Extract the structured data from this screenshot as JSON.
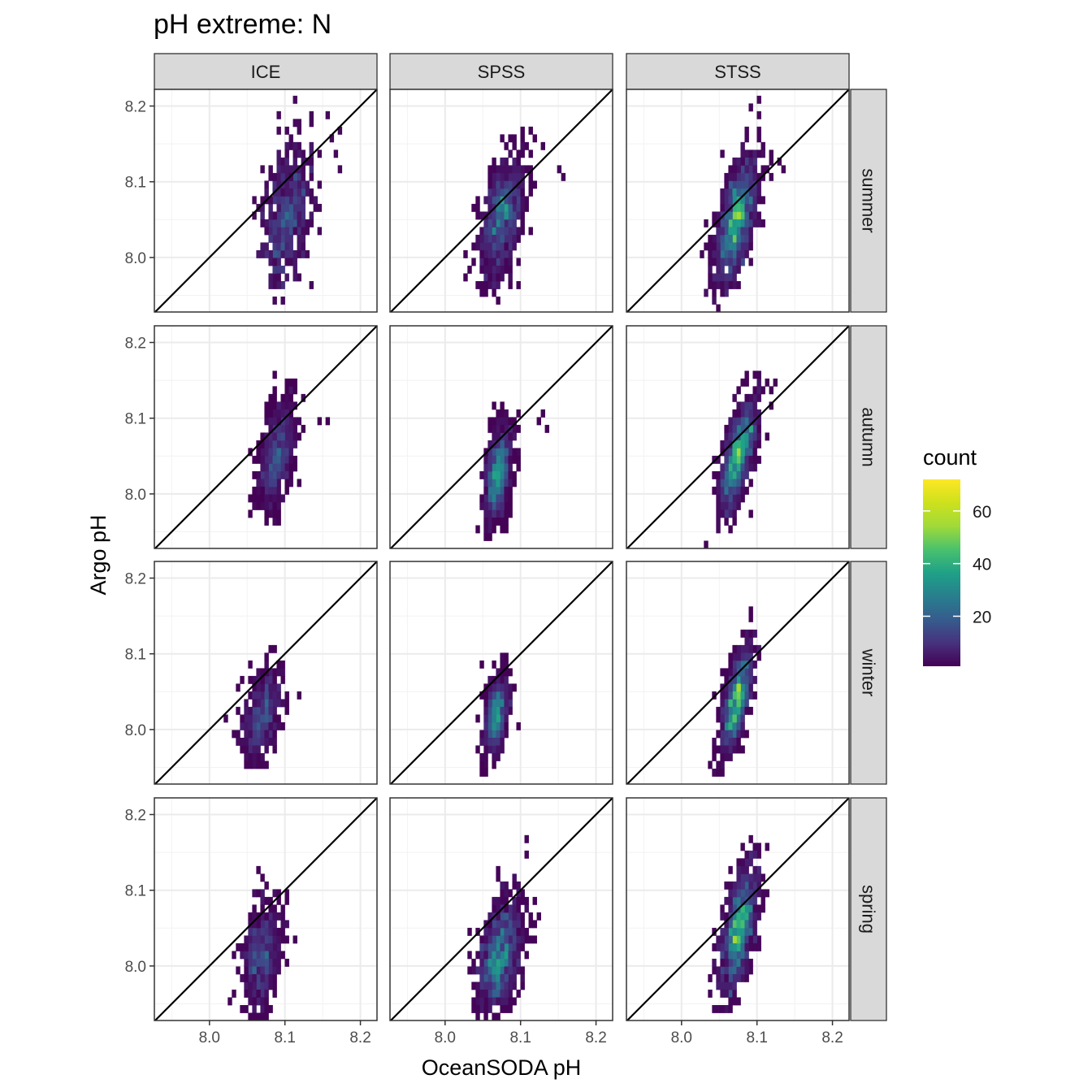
{
  "chart_data": {
    "type": "heatmap",
    "title": "pH extreme: N",
    "xlabel": "OceanSODA pH",
    "ylabel": "Argo pH",
    "xlim": [
      7.927,
      8.222
    ],
    "ylim": [
      7.928,
      8.222
    ],
    "x_ticks": [
      8.0,
      8.1,
      8.2
    ],
    "y_ticks": [
      8.0,
      8.1,
      8.2
    ],
    "x_tick_labels": [
      "8.0",
      "8.1",
      "8.2"
    ],
    "y_tick_labels": [
      "8.0",
      "8.1",
      "8.2"
    ],
    "facet_columns": [
      "ICE",
      "SPSS",
      "STSS"
    ],
    "facet_rows": [
      "summer",
      "autumn",
      "winter",
      "spring"
    ],
    "reference_line": "y = x",
    "grid": true,
    "legend": {
      "title": "count",
      "position": "right",
      "colormap": "viridis",
      "range": [
        1,
        72
      ],
      "ticks": [
        20,
        40,
        60
      ],
      "tick_labels": [
        "20",
        "40",
        "60"
      ]
    },
    "panels": [
      {
        "column": "ICE",
        "row": "summer",
        "x_center": 8.103,
        "y_center": 8.055,
        "x_spread": 0.016,
        "y_spread": 0.045,
        "corr": 0.35,
        "n": 520,
        "outliers": [
          [
            8.115,
            8.205
          ],
          [
            8.135,
            8.185
          ],
          [
            8.155,
            8.185
          ],
          [
            8.16,
            8.155
          ],
          [
            8.165,
            8.14
          ],
          [
            8.17,
            8.17
          ],
          [
            8.175,
            8.115
          ],
          [
            8.145,
            8.1
          ]
        ]
      },
      {
        "column": "SPSS",
        "row": "summer",
        "x_center": 8.075,
        "y_center": 8.05,
        "x_spread": 0.014,
        "y_spread": 0.04,
        "corr": 0.45,
        "n": 780,
        "outliers": [
          [
            8.115,
            8.165
          ],
          [
            8.1,
            8.14
          ],
          [
            8.15,
            8.12
          ],
          [
            8.155,
            8.105
          ],
          [
            8.13,
            8.145
          ],
          [
            8.06,
            7.97
          ],
          [
            8.075,
            7.975
          ],
          [
            8.085,
            7.96
          ],
          [
            8.095,
            7.962
          ]
        ]
      },
      {
        "column": "STSS",
        "row": "summer",
        "x_center": 8.072,
        "y_center": 8.048,
        "x_spread": 0.014,
        "y_spread": 0.04,
        "corr": 0.6,
        "n": 1100,
        "outliers": [
          [
            8.09,
            8.195
          ],
          [
            8.1,
            8.165
          ],
          [
            8.11,
            8.15
          ],
          [
            8.12,
            8.14
          ],
          [
            8.13,
            8.13
          ],
          [
            8.135,
            8.115
          ],
          [
            8.105,
            8.185
          ],
          [
            8.05,
            7.985
          ]
        ]
      },
      {
        "column": "ICE",
        "row": "autumn",
        "x_center": 8.088,
        "y_center": 8.05,
        "x_spread": 0.012,
        "y_spread": 0.035,
        "corr": 0.45,
        "n": 640,
        "outliers": [
          [
            8.085,
            8.155
          ],
          [
            8.115,
            8.145
          ],
          [
            8.125,
            8.13
          ],
          [
            8.145,
            8.095
          ],
          [
            8.155,
            8.1
          ],
          [
            8.12,
            8.1
          ]
        ]
      },
      {
        "column": "SPSS",
        "row": "autumn",
        "x_center": 8.07,
        "y_center": 8.025,
        "x_spread": 0.009,
        "y_spread": 0.03,
        "corr": 0.4,
        "n": 900,
        "outliers": [
          [
            8.125,
            8.1
          ],
          [
            8.13,
            8.11
          ],
          [
            8.135,
            8.085
          ],
          [
            8.075,
            7.965
          ],
          [
            8.065,
            7.955
          ],
          [
            8.08,
            7.99
          ]
        ]
      },
      {
        "column": "STSS",
        "row": "autumn",
        "x_center": 8.075,
        "y_center": 8.05,
        "x_spread": 0.012,
        "y_spread": 0.035,
        "corr": 0.65,
        "n": 1200,
        "outliers": [
          [
            8.105,
            8.155
          ],
          [
            8.115,
            8.145
          ],
          [
            8.12,
            8.12
          ],
          [
            8.045,
            8.045
          ],
          [
            8.05,
            8.0
          ]
        ]
      },
      {
        "column": "ICE",
        "row": "winter",
        "x_center": 8.07,
        "y_center": 8.02,
        "x_spread": 0.012,
        "y_spread": 0.028,
        "corr": 0.4,
        "n": 420,
        "outliers": [
          [
            8.04,
            8.055
          ],
          [
            8.1,
            8.045
          ],
          [
            8.06,
            7.965
          ],
          [
            8.055,
            7.955
          ],
          [
            8.035,
            7.985
          ],
          [
            8.045,
            8.07
          ]
        ]
      },
      {
        "column": "SPSS",
        "row": "winter",
        "x_center": 8.068,
        "y_center": 8.02,
        "x_spread": 0.008,
        "y_spread": 0.025,
        "corr": 0.35,
        "n": 760,
        "outliers": [
          [
            8.09,
            8.055
          ],
          [
            8.095,
            8.0
          ],
          [
            8.045,
            7.975
          ],
          [
            8.055,
            7.965
          ]
        ]
      },
      {
        "column": "STSS",
        "row": "winter",
        "x_center": 8.073,
        "y_center": 8.04,
        "x_spread": 0.01,
        "y_spread": 0.032,
        "corr": 0.6,
        "n": 1000,
        "outliers": [
          [
            8.095,
            8.125
          ],
          [
            8.09,
            8.11
          ],
          [
            8.065,
            7.99
          ],
          [
            8.07,
            7.99
          ],
          [
            8.085,
            7.99
          ]
        ]
      },
      {
        "column": "ICE",
        "row": "spring",
        "x_center": 8.068,
        "y_center": 8.015,
        "x_spread": 0.012,
        "y_spread": 0.035,
        "corr": 0.2,
        "n": 460,
        "outliers": [
          [
            8.09,
            8.095
          ],
          [
            8.105,
            8.095
          ],
          [
            8.115,
            8.04
          ],
          [
            8.045,
            7.94
          ],
          [
            8.065,
            7.975
          ]
        ]
      },
      {
        "column": "SPSS",
        "row": "spring",
        "x_center": 8.072,
        "y_center": 8.015,
        "x_spread": 0.014,
        "y_spread": 0.035,
        "corr": 0.4,
        "n": 950,
        "outliers": [
          [
            8.108,
            8.165
          ],
          [
            8.11,
            8.145
          ],
          [
            8.09,
            8.115
          ],
          [
            8.12,
            8.085
          ],
          [
            8.125,
            8.07
          ],
          [
            8.12,
            8.035
          ],
          [
            8.04,
            7.97
          ],
          [
            8.06,
            7.96
          ],
          [
            8.08,
            7.962
          ]
        ]
      },
      {
        "column": "STSS",
        "row": "spring",
        "x_center": 8.076,
        "y_center": 8.05,
        "x_spread": 0.012,
        "y_spread": 0.04,
        "corr": 0.55,
        "n": 950,
        "outliers": [
          [
            8.095,
            8.145
          ],
          [
            8.085,
            8.14
          ],
          [
            8.11,
            8.12
          ],
          [
            8.115,
            8.095
          ],
          [
            8.08,
            7.99
          ],
          [
            8.075,
            7.98
          ]
        ]
      }
    ]
  }
}
